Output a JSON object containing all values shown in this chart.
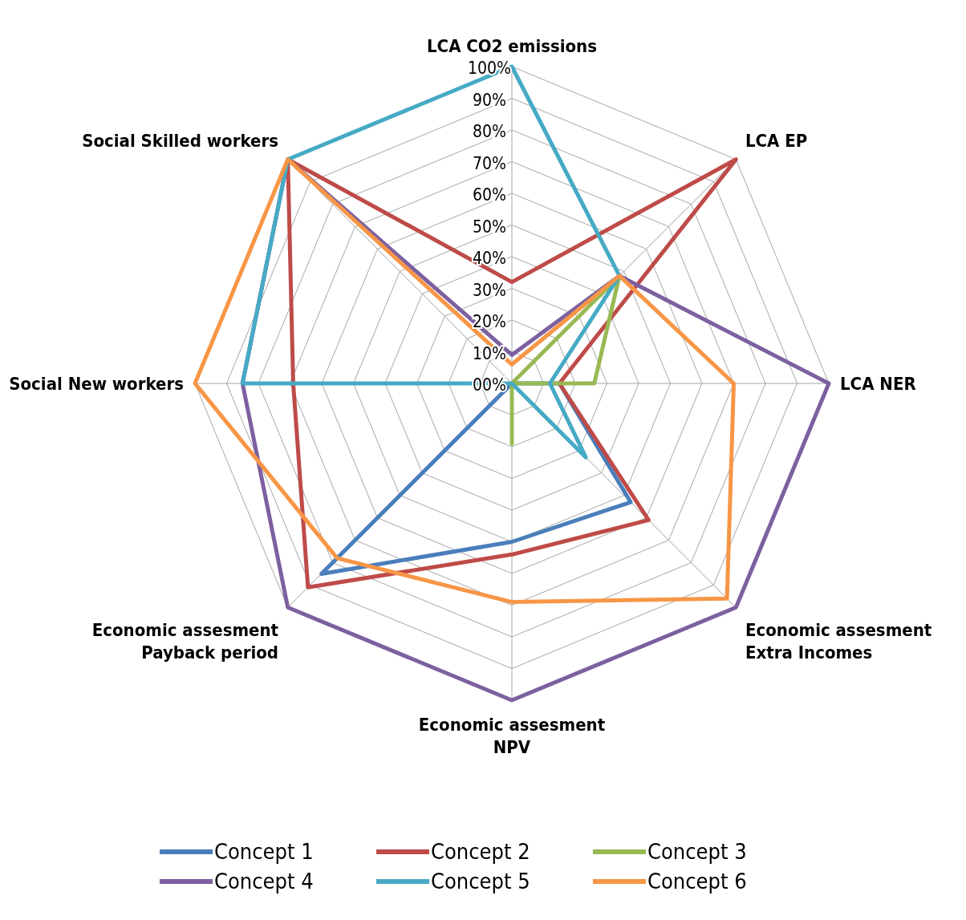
{
  "chart_data": {
    "type": "radar",
    "categories": [
      "LCA CO2 emissions",
      "LCA EP",
      "LCA NER",
      "Economic assesment\nExtra Incomes",
      "Economic assesment\nNPV",
      "Economic assesment\nPayback period",
      "Social New workers",
      "Social Skilled workers"
    ],
    "series": [
      {
        "name": "Concept 1",
        "color": "#4a7ebb",
        "values": [
          0,
          0,
          15,
          53,
          50,
          85,
          0,
          0
        ]
      },
      {
        "name": "Concept 2",
        "color": "#be4b48",
        "values": [
          32,
          100,
          15,
          61,
          54,
          91,
          69,
          100
        ]
      },
      {
        "name": "Concept 3",
        "color": "#98b954",
        "values": [
          0,
          48,
          26,
          0,
          19,
          0,
          0,
          0
        ]
      },
      {
        "name": "Concept 4",
        "color": "#7d60a0",
        "values": [
          9,
          48,
          100,
          100,
          100,
          100,
          85,
          100
        ]
      },
      {
        "name": "Concept 5",
        "color": "#46aac5",
        "values": [
          100,
          48,
          12,
          33,
          0,
          0,
          85,
          100
        ]
      },
      {
        "name": "Concept 6",
        "color": "#f79646",
        "values": [
          6,
          48,
          70,
          96,
          69,
          78,
          100,
          100
        ]
      }
    ],
    "ylim": [
      0,
      100
    ],
    "yticks": [
      {
        "value": 0,
        "label": "00%"
      },
      {
        "value": 10,
        "label": "10%"
      },
      {
        "value": 20,
        "label": "20%"
      },
      {
        "value": 30,
        "label": "30%"
      },
      {
        "value": 40,
        "label": "40%"
      },
      {
        "value": 50,
        "label": "50%"
      },
      {
        "value": 60,
        "label": "60%"
      },
      {
        "value": 70,
        "label": "70%"
      },
      {
        "value": 80,
        "label": "80%"
      },
      {
        "value": 90,
        "label": "90%"
      },
      {
        "value": 100,
        "label": "100%"
      }
    ],
    "grid": true,
    "legend": "bottom",
    "marker": "none"
  }
}
